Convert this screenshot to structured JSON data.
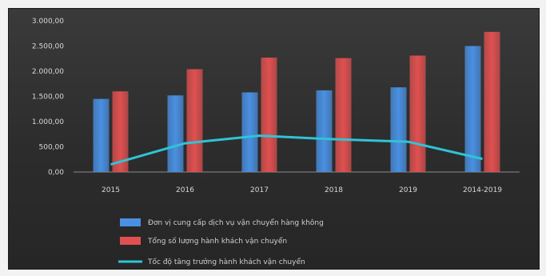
{
  "chart_data": {
    "type": "bar",
    "categories": [
      "2015",
      "2016",
      "2017",
      "2018",
      "2019",
      "2014-2019"
    ],
    "ylim": [
      0,
      3000
    ],
    "yticks": [
      "0,00",
      "500,00",
      "1.000,00",
      "1.500,00",
      "2.000,00",
      "2.500,00",
      "3.000,00"
    ],
    "grid": false,
    "legend_position": "bottom",
    "series": [
      {
        "name": "Đơn vị cung cấp dịch vụ vận chuyển hàng không",
        "kind": "bar",
        "values": [
          1450,
          1520,
          1580,
          1620,
          1680,
          2500
        ],
        "color": "#4a90e2"
      },
      {
        "name": "Tổng số lượng hành khách vận chuyển",
        "kind": "bar",
        "values": [
          1600,
          2040,
          2270,
          2260,
          2310,
          2780
        ],
        "color": "#e05050"
      },
      {
        "name": "Tốc độ tăng trưởng hành khách vận chuyển",
        "kind": "line",
        "values": [
          150,
          570,
          720,
          650,
          600,
          260
        ],
        "color": "#2ec4d6"
      }
    ]
  }
}
